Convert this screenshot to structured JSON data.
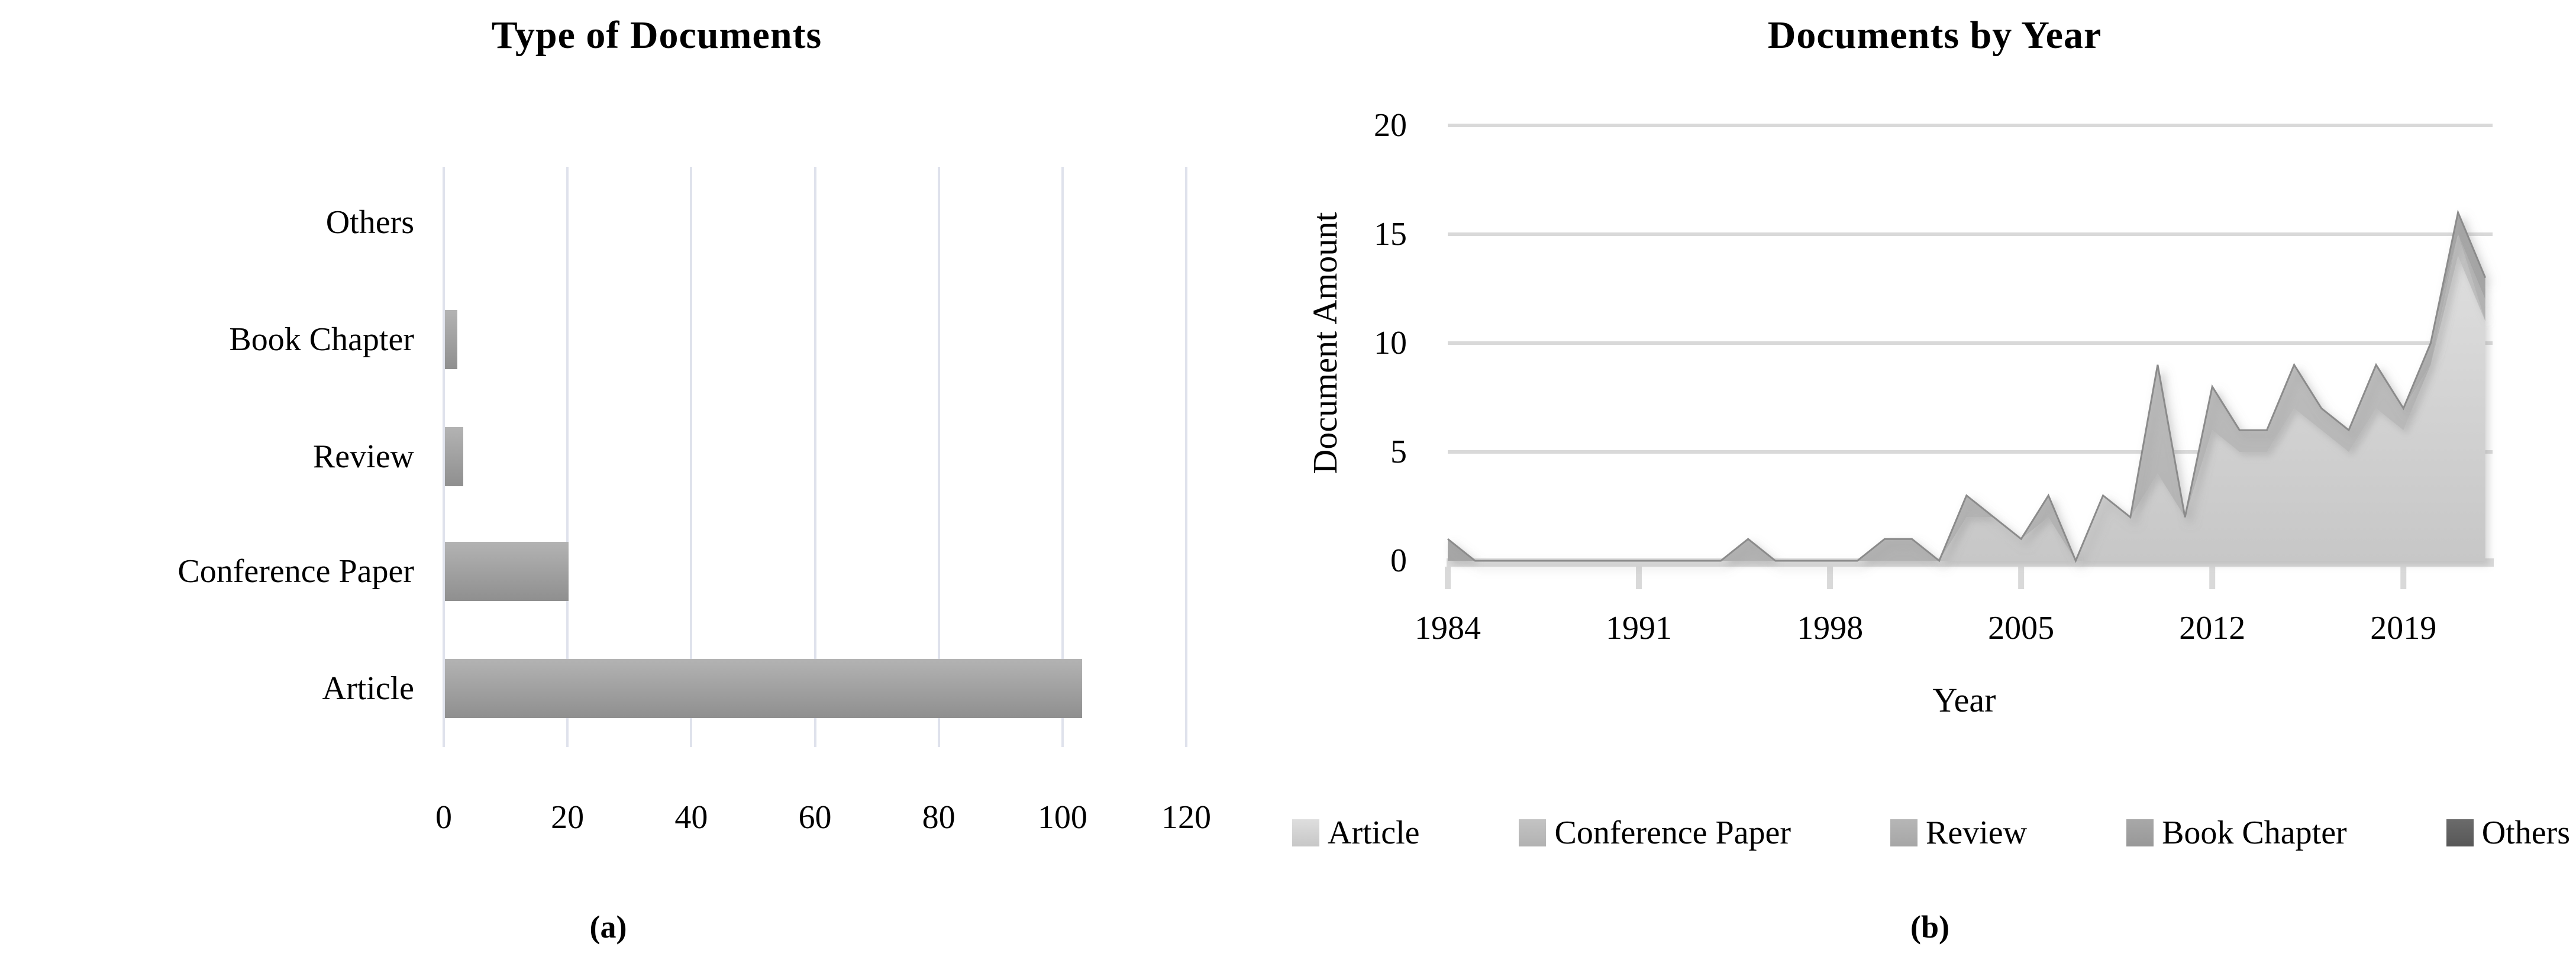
{
  "chart_data": [
    {
      "type": "bar",
      "orientation": "horizontal",
      "title": "Type of Documents",
      "caption": "(a)",
      "categories": [
        "Others",
        "Book Chapter",
        "Review",
        "Conference Paper",
        "Article"
      ],
      "values": [
        0,
        2,
        3,
        20,
        103
      ],
      "x_ticks": [
        0,
        20,
        40,
        60,
        80,
        100,
        120
      ],
      "xlim": [
        0,
        120
      ],
      "grid": "vertical",
      "legend_position": "none"
    },
    {
      "type": "area",
      "stacked": true,
      "title": "Documents by Year",
      "caption": "(b)",
      "xlabel": "Year",
      "ylabel": "Document Amount",
      "ylim": [
        0,
        20
      ],
      "y_ticks": [
        0,
        5,
        10,
        15,
        20
      ],
      "x_tick_labels": [
        1984,
        1991,
        1998,
        2005,
        2012,
        2019
      ],
      "x": [
        1984,
        1985,
        1986,
        1987,
        1988,
        1989,
        1990,
        1991,
        1992,
        1993,
        1994,
        1995,
        1996,
        1997,
        1998,
        1999,
        2000,
        2001,
        2002,
        2003,
        2004,
        2005,
        2006,
        2007,
        2008,
        2009,
        2010,
        2011,
        2012,
        2013,
        2014,
        2015,
        2016,
        2017,
        2018,
        2019,
        2020,
        2021,
        2022
      ],
      "series": [
        {
          "name": "Article",
          "values": [
            0,
            0,
            0,
            0,
            0,
            0,
            0,
            0,
            0,
            0,
            0,
            0,
            0,
            0,
            0,
            0,
            0,
            0,
            0,
            2,
            2,
            1,
            2,
            0,
            3,
            2,
            4,
            2,
            6,
            5,
            5,
            7,
            6,
            5,
            7,
            6,
            9,
            14,
            11
          ]
        },
        {
          "name": "Conference Paper",
          "values": [
            0,
            0,
            0,
            0,
            0,
            0,
            0,
            0,
            0,
            0,
            0,
            1,
            0,
            0,
            0,
            0,
            1,
            1,
            0,
            1,
            0,
            0,
            1,
            0,
            0,
            0,
            5,
            0,
            2,
            1,
            1,
            2,
            1,
            1,
            2,
            1,
            0,
            1,
            0
          ]
        },
        {
          "name": "Review",
          "values": [
            1,
            0,
            0,
            0,
            0,
            0,
            0,
            0,
            0,
            0,
            0,
            0,
            0,
            0,
            0,
            0,
            0,
            0,
            0,
            0,
            0,
            0,
            0,
            0,
            0,
            0,
            0,
            0,
            0,
            0,
            0,
            0,
            0,
            0,
            0,
            0,
            1,
            0,
            1
          ]
        },
        {
          "name": "Book Chapter",
          "values": [
            0,
            0,
            0,
            0,
            0,
            0,
            0,
            0,
            0,
            0,
            0,
            0,
            0,
            0,
            0,
            0,
            0,
            0,
            0,
            0,
            0,
            0,
            0,
            0,
            0,
            0,
            0,
            0,
            0,
            0,
            0,
            0,
            0,
            0,
            0,
            0,
            0,
            1,
            1
          ]
        },
        {
          "name": "Others",
          "values": [
            0,
            0,
            0,
            0,
            0,
            0,
            0,
            0,
            0,
            0,
            0,
            0,
            0,
            0,
            0,
            0,
            0,
            0,
            0,
            0,
            0,
            0,
            0,
            0,
            0,
            0,
            0,
            0,
            0,
            0,
            0,
            0,
            0,
            0,
            0,
            0,
            0,
            0,
            0
          ]
        }
      ],
      "legend": [
        "Article",
        "Conference Paper",
        "Review",
        "Book Chapter",
        "Others"
      ],
      "legend_position": "bottom",
      "grid": "horizontal"
    }
  ],
  "colors": {
    "text": "#000000",
    "left_gridline": "#dfe2ec",
    "bar_gradient": [
      "#b3b3b3",
      "#8f8f8f"
    ],
    "right_gridline": "#d9d9d9",
    "axis_band": "#d9d9d9",
    "tick_mark": "#d9d9d9",
    "outline": "#8b8b8b",
    "series_fills": {
      "Article": [
        "#dedede",
        "#c7c7c7"
      ],
      "Conference Paper": [
        "#c3c3c3",
        "#b2b2b2"
      ],
      "Review": [
        "#b6b6b6",
        "#a6a6a6"
      ],
      "Book Chapter": [
        "#a8a8a8",
        "#989898"
      ],
      "Others": [
        "#6b6b6b",
        "#575757"
      ]
    }
  }
}
